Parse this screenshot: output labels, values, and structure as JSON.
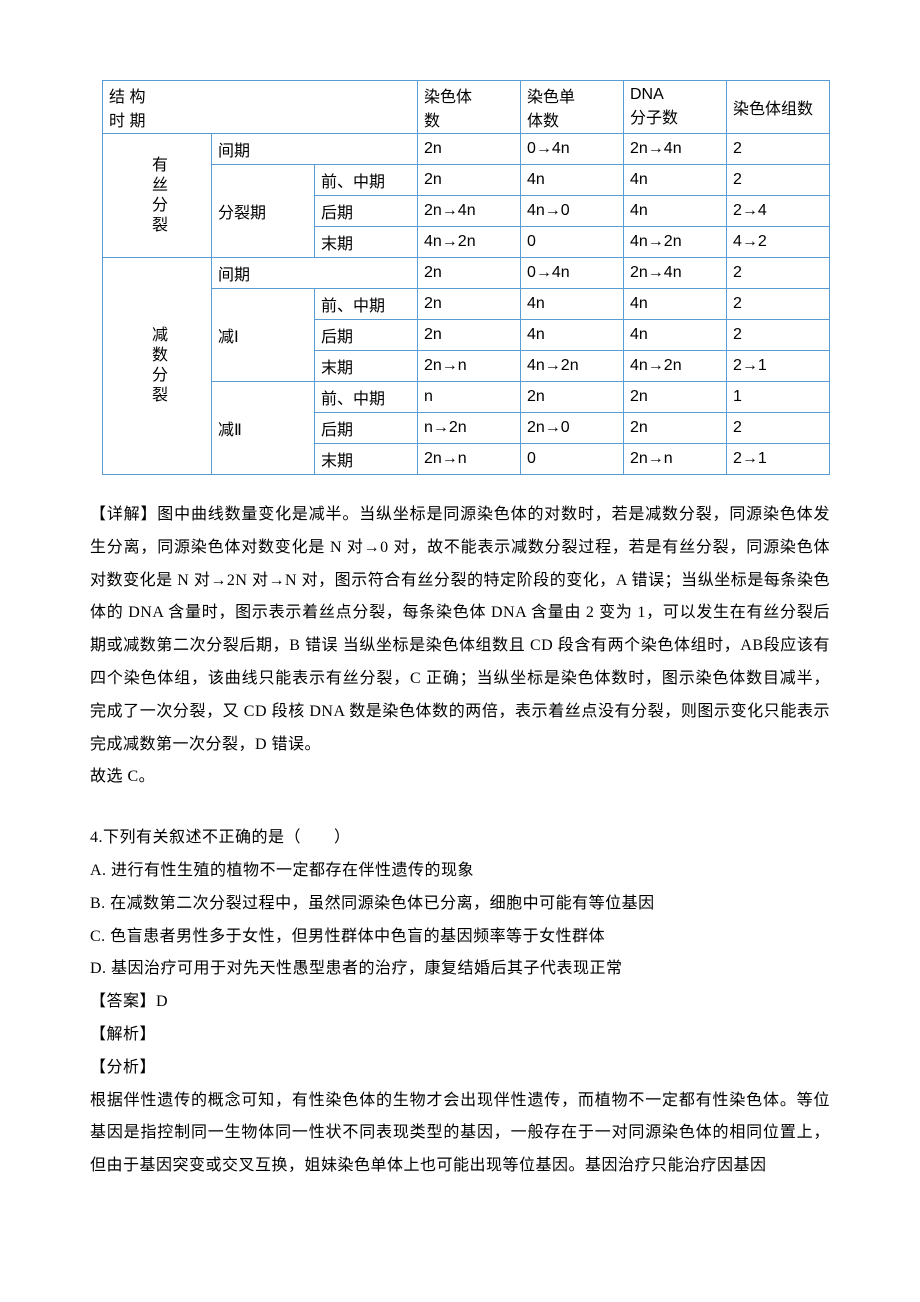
{
  "table": {
    "border_color": "#5b9bd5",
    "font_family": "Microsoft YaHei",
    "font_size": 16,
    "header": {
      "structure_period": [
        "结 构",
        "时 期"
      ],
      "chromosome_count": [
        "染色体",
        "数"
      ],
      "chromatid_count": [
        "染色单",
        "体数"
      ],
      "dna_count": [
        "DNA",
        "分子数"
      ],
      "chromosome_set": "染色体组数"
    },
    "mitosis_label": "有丝分裂",
    "meiosis_label": "减数分裂",
    "division_label": "分裂期",
    "meiosis1_label": "减Ⅰ",
    "meiosis2_label": "减Ⅱ",
    "rows": {
      "mitosis": {
        "interphase": {
          "label": "间期",
          "chr": "2n",
          "chromatid": "0→4n",
          "dna": "2n→4n",
          "set": "2"
        },
        "pro_meta": {
          "label": "前、中期",
          "chr": "2n",
          "chromatid": "4n",
          "dna": "4n",
          "set": "2"
        },
        "anaphase": {
          "label": "后期",
          "chr": "2n→4n",
          "chromatid": "4n→0",
          "dna": "4n",
          "set": "2→4"
        },
        "telophase": {
          "label": "末期",
          "chr": "4n→2n",
          "chromatid": "0",
          "dna": "4n→2n",
          "set": "4→2"
        }
      },
      "meiosis": {
        "interphase": {
          "label": "间期",
          "chr": "2n",
          "chromatid": "0→4n",
          "dna": "2n→4n",
          "set": "2"
        },
        "m1": {
          "pro_meta": {
            "label": "前、中期",
            "chr": "2n",
            "chromatid": "4n",
            "dna": "4n",
            "set": "2"
          },
          "anaphase": {
            "label": "后期",
            "chr": "2n",
            "chromatid": "4n",
            "dna": "4n",
            "set": "2"
          },
          "telophase": {
            "label": "末期",
            "chr": "2n→n",
            "chromatid": "4n→2n",
            "dna": "4n→2n",
            "set": "2→1"
          }
        },
        "m2": {
          "pro_meta": {
            "label": "前、中期",
            "chr": "n",
            "chromatid": "2n",
            "dna": "2n",
            "set": "1"
          },
          "anaphase": {
            "label": "后期",
            "chr": "n→2n",
            "chromatid": "2n→0",
            "dna": "2n",
            "set": "2"
          },
          "telophase": {
            "label": "末期",
            "chr": "2n→n",
            "chromatid": "0",
            "dna": "2n→n",
            "set": "2→1"
          }
        }
      }
    }
  },
  "analysis": {
    "p1": "【详解】图中曲线数量变化是减半。当纵坐标是同源染色体的对数时，若是减数分裂，同源染色体发生分离，同源染色体对数变化是 N 对→0 对，故不能表示减数分裂过程，若是有丝分裂，同源染色体对数变化是 N 对→2N 对→N 对，图示符合有丝分裂的特定阶段的变化，A 错误；当纵坐标是每条染色体的 DNA 含量时，图示表示着丝点分裂，每条染色体 DNA 含量由 2 变为 1，可以发生在有丝分裂后期或减数第二次分裂后期，B 错误 当纵坐标是染色体组数且 CD 段含有两个染色体组时，AB段应该有四个染色体组，该曲线只能表示有丝分裂，C 正确；当纵坐标是染色体数时，图示染色体数目减半，完成了一次分裂，又 CD 段核 DNA 数是染色体数的两倍，表示着丝点没有分裂，则图示变化只能表示完成减数第一次分裂，D 错误。",
    "p2": "故选 C。"
  },
  "q4": {
    "stem": "4.下列有关叙述不正确的是（　　）",
    "A": "A. 进行有性生殖的植物不一定都存在伴性遗传的现象",
    "B": "B. 在减数第二次分裂过程中，虽然同源染色体已分离，细胞中可能有等位基因",
    "C": "C. 色盲患者男性多于女性，但男性群体中色盲的基因频率等于女性群体",
    "D": "D. 基因治疗可用于对先天性愚型患者的治疗，康复结婚后其子代表现正常",
    "answer": "【答案】D",
    "explain_head": "【解析】",
    "analysis_head": "【分析】",
    "analysis_body": "根据伴性遗传的概念可知，有性染色体的生物才会出现伴性遗传，而植物不一定都有性染色体。等位基因是指控制同一生物体同一性状不同表现类型的基因，一般存在于一对同源染色体的相同位置上，但由于基因突变或交叉互换，姐妹染色单体上也可能出现等位基因。基因治疗只能治疗因基因"
  }
}
